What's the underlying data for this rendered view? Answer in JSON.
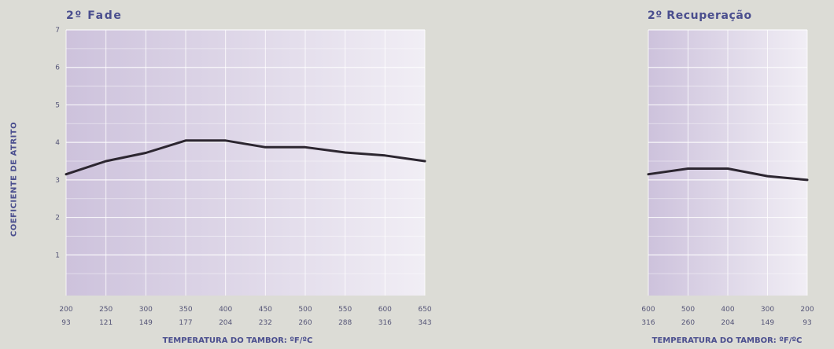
{
  "ylabel": "COEFICIENTE DE ATRITO",
  "colors": {
    "background": "#dcdcd6",
    "plot_gradient_start": "#cdc2dc",
    "plot_gradient_end": "#f1eef5",
    "line": "#2c2630",
    "label": "#4a4e8e",
    "tick": "#555577"
  },
  "chart_data": [
    {
      "type": "line",
      "title": "2º Fade",
      "xlabel": "TEMPERATURA DO TAMBOR: ºF/ºC",
      "ylabel": "COEFICIENTE DE ATRITO",
      "ylim": [
        0,
        7
      ],
      "y_ticks": [
        "1",
        "2",
        "3",
        "4",
        "5",
        "6",
        "7"
      ],
      "x_ticks_f": [
        "200",
        "250",
        "300",
        "350",
        "400",
        "450",
        "500",
        "550",
        "600",
        "650"
      ],
      "x_ticks_c": [
        "93",
        "121",
        "149",
        "177",
        "204",
        "232",
        "260",
        "288",
        "316",
        "343"
      ],
      "x": [
        200,
        250,
        300,
        350,
        400,
        450,
        500,
        550,
        600,
        650
      ],
      "values": [
        3.15,
        3.5,
        3.72,
        4.05,
        4.05,
        3.87,
        3.87,
        3.73,
        3.65,
        3.5
      ],
      "grid": true
    },
    {
      "type": "line",
      "title": "2º Recuperação",
      "xlabel": "TEMPERATURA DO TAMBOR: ºF/ºC",
      "ylim": [
        0,
        7
      ],
      "x_ticks_f": [
        "600",
        "500",
        "400",
        "300",
        "200"
      ],
      "x_ticks_c": [
        "316",
        "260",
        "204",
        "149",
        "93"
      ],
      "x": [
        600,
        500,
        400,
        300,
        200
      ],
      "values": [
        3.15,
        3.3,
        3.3,
        3.1,
        3.0
      ],
      "grid": true
    }
  ]
}
